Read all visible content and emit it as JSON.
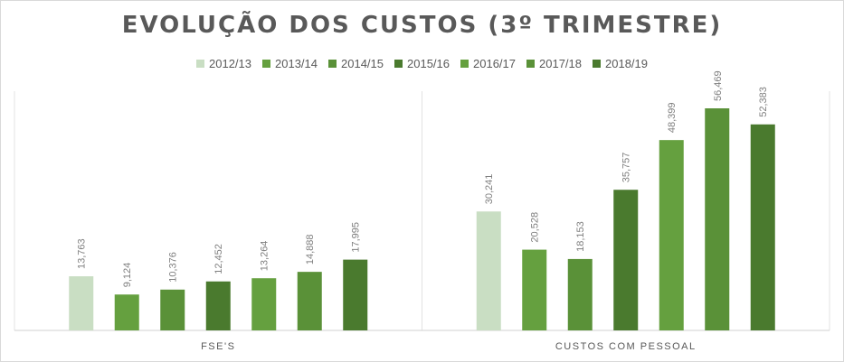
{
  "chart_data": {
    "type": "bar",
    "title": "EVOLUÇÃO DOS CUSTOS (3º TRIMESTRE)",
    "categories": [
      "FSE'S",
      "CUSTOS COM PESSOAL"
    ],
    "series": [
      {
        "name": "2012/13",
        "color": "#c9dec3",
        "values": [
          13763,
          30241
        ],
        "labels": [
          "13,763",
          "30,241"
        ]
      },
      {
        "name": "2013/14",
        "color": "#65a03f",
        "values": [
          9124,
          20528
        ],
        "labels": [
          "9,124",
          "20,528"
        ]
      },
      {
        "name": "2014/15",
        "color": "#5a9138",
        "values": [
          10376,
          18153
        ],
        "labels": [
          "10,376",
          "18,153"
        ]
      },
      {
        "name": "2015/16",
        "color": "#4a7a2e",
        "values": [
          12452,
          35757
        ],
        "labels": [
          "12,452",
          "35,757"
        ]
      },
      {
        "name": "2016/17",
        "color": "#65a03f",
        "values": [
          13264,
          48399
        ],
        "labels": [
          "13,264",
          "48,399"
        ]
      },
      {
        "name": "2017/18",
        "color": "#5a9138",
        "values": [
          14888,
          56469
        ],
        "labels": [
          "14,888",
          "56,469"
        ]
      },
      {
        "name": "2018/19",
        "color": "#4a7a2e",
        "values": [
          17995,
          52383
        ],
        "labels": [
          "17,995",
          "52,383"
        ]
      }
    ],
    "ylim": [
      0,
      56469
    ],
    "grid": false,
    "legend_position": "top"
  }
}
